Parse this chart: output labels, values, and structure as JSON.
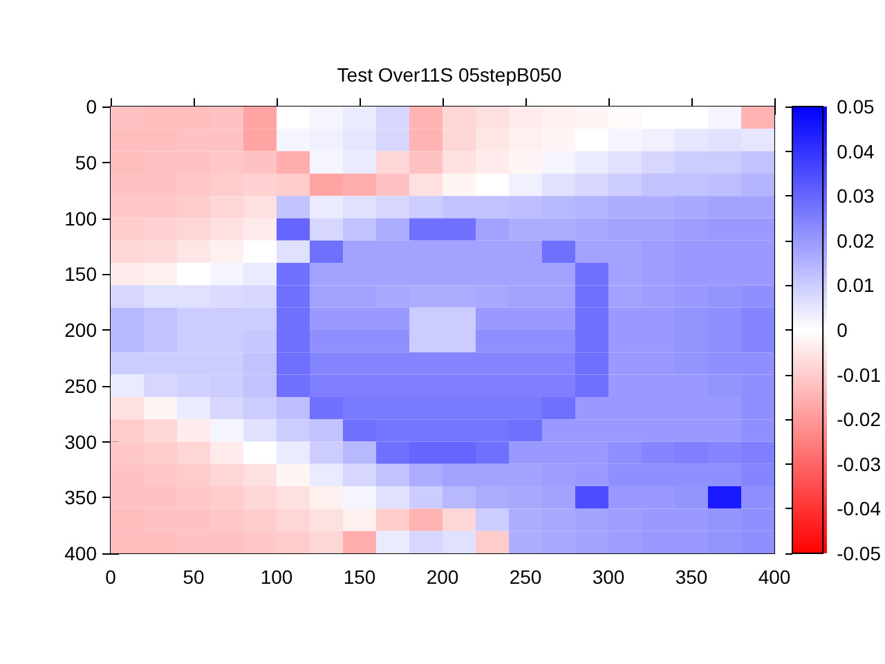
{
  "chart_data": {
    "type": "heatmap",
    "title": "Test Over11S 05stepB050",
    "x": [
      10,
      30,
      50,
      70,
      90,
      110,
      130,
      150,
      170,
      190,
      210,
      230,
      250,
      270,
      290,
      310,
      330,
      350,
      370,
      390
    ],
    "y": [
      10,
      30,
      50,
      70,
      90,
      110,
      130,
      150,
      170,
      190,
      210,
      230,
      250,
      270,
      290,
      310,
      330,
      350,
      370,
      390
    ],
    "xlim": [
      0,
      400
    ],
    "xticks": [
      0,
      50,
      100,
      150,
      200,
      250,
      300,
      350,
      400
    ],
    "ylim": [
      400,
      0
    ],
    "yticks": [
      0,
      50,
      100,
      150,
      200,
      250,
      300,
      350,
      400
    ],
    "clim": [
      -0.05,
      0.05
    ],
    "cticks": [
      -0.05,
      -0.04,
      -0.03,
      -0.02,
      -0.01,
      0,
      0.01,
      0.02,
      0.03,
      0.04,
      0.05
    ],
    "cells": [
      [
        -0.012,
        -0.013,
        -0.013,
        -0.012,
        -0.018,
        0,
        0.002,
        0.004,
        0.008,
        -0.015,
        -0.008,
        -0.006,
        -0.004,
        -0.003,
        -0.002,
        -0.001,
        0,
        0,
        0.002,
        -0.015
      ],
      [
        -0.013,
        -0.013,
        -0.012,
        -0.012,
        -0.018,
        0.002,
        0.003,
        0.005,
        0.008,
        -0.015,
        -0.008,
        -0.005,
        -0.003,
        -0.002,
        0,
        0.002,
        0.003,
        0.005,
        0.006,
        0.005
      ],
      [
        -0.013,
        -0.012,
        -0.012,
        -0.011,
        -0.012,
        -0.016,
        0.002,
        0.004,
        -0.008,
        -0.012,
        -0.006,
        -0.004,
        -0.002,
        0.002,
        0.004,
        0.006,
        0.008,
        0.01,
        0.01,
        0.012
      ],
      [
        -0.012,
        -0.012,
        -0.011,
        -0.01,
        -0.009,
        -0.01,
        -0.018,
        -0.016,
        -0.012,
        -0.006,
        -0.002,
        0,
        0.003,
        0.006,
        0.008,
        0.01,
        0.012,
        0.012,
        0.013,
        0.015
      ],
      [
        -0.011,
        -0.011,
        -0.01,
        -0.008,
        -0.006,
        0.012,
        0.004,
        0.006,
        0.008,
        0.01,
        0.012,
        0.012,
        0.013,
        0.014,
        0.015,
        0.016,
        0.016,
        0.017,
        0.018,
        0.018
      ],
      [
        -0.01,
        -0.009,
        -0.008,
        -0.006,
        -0.004,
        0.03,
        0.008,
        0.012,
        0.016,
        0.028,
        0.028,
        0.018,
        0.016,
        0.016,
        0.017,
        0.018,
        0.018,
        0.019,
        0.02,
        0.02
      ],
      [
        -0.008,
        -0.007,
        -0.005,
        -0.003,
        0,
        0.006,
        0.028,
        0.018,
        0.018,
        0.018,
        0.018,
        0.018,
        0.018,
        0.028,
        0.018,
        0.018,
        0.019,
        0.02,
        0.02,
        0.02
      ],
      [
        -0.004,
        -0.003,
        0,
        0.002,
        0.004,
        0.028,
        0.018,
        0.018,
        0.018,
        0.018,
        0.018,
        0.018,
        0.018,
        0.018,
        0.028,
        0.018,
        0.019,
        0.02,
        0.02,
        0.02
      ],
      [
        0.008,
        0.006,
        0.006,
        0.007,
        0.008,
        0.028,
        0.018,
        0.018,
        0.017,
        0.016,
        0.016,
        0.017,
        0.018,
        0.018,
        0.028,
        0.018,
        0.019,
        0.02,
        0.021,
        0.022
      ],
      [
        0.014,
        0.012,
        0.01,
        0.01,
        0.01,
        0.028,
        0.02,
        0.02,
        0.02,
        0.01,
        0.01,
        0.02,
        0.02,
        0.02,
        0.028,
        0.02,
        0.02,
        0.021,
        0.022,
        0.024
      ],
      [
        0.014,
        0.012,
        0.01,
        0.01,
        0.011,
        0.028,
        0.022,
        0.022,
        0.022,
        0.01,
        0.01,
        0.022,
        0.022,
        0.022,
        0.028,
        0.02,
        0.02,
        0.021,
        0.022,
        0.024
      ],
      [
        0.01,
        0.01,
        0.01,
        0.01,
        0.012,
        0.028,
        0.024,
        0.024,
        0.024,
        0.024,
        0.024,
        0.024,
        0.024,
        0.024,
        0.028,
        0.02,
        0.02,
        0.021,
        0.022,
        0.022
      ],
      [
        0.004,
        0.008,
        0.009,
        0.01,
        0.012,
        0.028,
        0.025,
        0.025,
        0.025,
        0.025,
        0.025,
        0.025,
        0.025,
        0.025,
        0.028,
        0.02,
        0.02,
        0.02,
        0.021,
        0.022
      ],
      [
        -0.006,
        -0.002,
        0.004,
        0.008,
        0.01,
        0.013,
        0.028,
        0.026,
        0.026,
        0.026,
        0.026,
        0.026,
        0.026,
        0.028,
        0.02,
        0.02,
        0.02,
        0.02,
        0.02,
        0.022
      ],
      [
        -0.01,
        -0.008,
        -0.004,
        0.002,
        0.006,
        0.01,
        0.012,
        0.028,
        0.027,
        0.027,
        0.027,
        0.027,
        0.028,
        0.02,
        0.02,
        0.02,
        0.02,
        0.02,
        0.02,
        0.022
      ],
      [
        -0.011,
        -0.01,
        -0.008,
        -0.004,
        0,
        0.004,
        0.01,
        0.014,
        0.028,
        0.03,
        0.03,
        0.028,
        0.02,
        0.02,
        0.02,
        0.022,
        0.024,
        0.025,
        0.024,
        0.025
      ],
      [
        -0.012,
        -0.011,
        -0.01,
        -0.008,
        -0.006,
        -0.002,
        0.004,
        0.008,
        0.012,
        0.016,
        0.018,
        0.018,
        0.018,
        0.019,
        0.02,
        0.022,
        0.022,
        0.022,
        0.022,
        0.024
      ],
      [
        -0.012,
        -0.012,
        -0.011,
        -0.01,
        -0.008,
        -0.006,
        -0.003,
        0.002,
        0.006,
        0.01,
        0.014,
        0.016,
        0.017,
        0.018,
        0.035,
        0.02,
        0.02,
        0.021,
        0.045,
        0.022
      ],
      [
        -0.013,
        -0.012,
        -0.012,
        -0.011,
        -0.01,
        -0.008,
        -0.006,
        -0.003,
        -0.01,
        -0.015,
        -0.008,
        0.01,
        0.016,
        0.017,
        0.018,
        0.019,
        0.02,
        0.02,
        0.021,
        0.022
      ],
      [
        -0.013,
        -0.013,
        -0.012,
        -0.012,
        -0.011,
        -0.01,
        -0.008,
        -0.016,
        0.004,
        0.008,
        0.006,
        -0.01,
        0.016,
        0.017,
        0.018,
        0.019,
        0.02,
        0.02,
        0.021,
        0.022
      ]
    ]
  }
}
